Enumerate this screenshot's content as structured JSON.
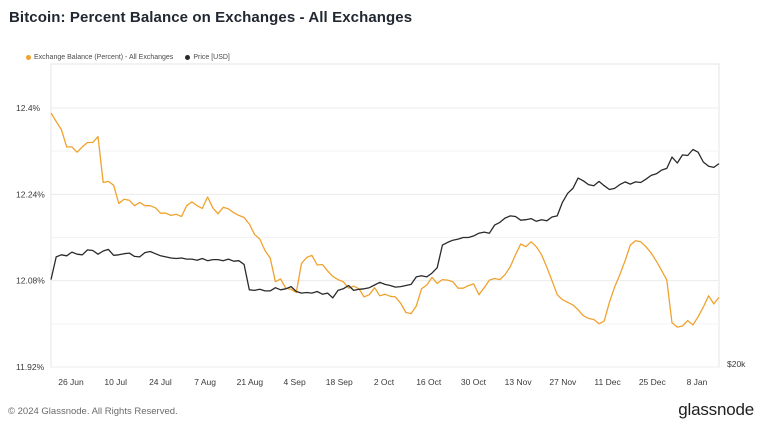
{
  "title": "Bitcoin: Percent Balance on Exchanges - All Exchanges",
  "footer": {
    "copyright": "© 2024 Glassnode. All Rights Reserved.",
    "brand": "glassnode"
  },
  "colors": {
    "balance": "#f0a22e",
    "price": "#2a2a2a",
    "grid": "#ececec"
  },
  "chart_data": {
    "type": "line",
    "title": "Bitcoin: Percent Balance on Exchanges - All Exchanges",
    "x_ticks": [
      "26 Jun",
      "10 Jul",
      "24 Jul",
      "7 Aug",
      "21 Aug",
      "4 Sep",
      "18 Sep",
      "2 Oct",
      "16 Oct",
      "30 Oct",
      "13 Nov",
      "27 Nov",
      "11 Dec",
      "25 Dec",
      "8 Jan"
    ],
    "y_left": {
      "ticks": [
        "12.4%",
        "12.24%",
        "12.08%",
        "11.92%"
      ],
      "tick_values": [
        12.4,
        12.24,
        12.08,
        11.92
      ],
      "range": [
        11.92,
        12.4
      ]
    },
    "y_right": {
      "ticks": [
        "$20k"
      ]
    },
    "grid": true,
    "legend_position": "top-left",
    "series": [
      {
        "name": "Exchange Balance (Percent) - All Exchanges",
        "axis": "left",
        "color": "#f0a22e",
        "points": [
          [
            0,
            12.391
          ],
          [
            1,
            12.375
          ],
          [
            2,
            12.36
          ],
          [
            3,
            12.328
          ],
          [
            4,
            12.328
          ],
          [
            5,
            12.318
          ],
          [
            6,
            12.328
          ],
          [
            7,
            12.336
          ],
          [
            8,
            12.336
          ],
          [
            9,
            12.347
          ],
          [
            10,
            12.262
          ],
          [
            11,
            12.264
          ],
          [
            12,
            12.257
          ],
          [
            13,
            12.223
          ],
          [
            14,
            12.231
          ],
          [
            15,
            12.229
          ],
          [
            16,
            12.219
          ],
          [
            17,
            12.225
          ],
          [
            18,
            12.219
          ],
          [
            19,
            12.219
          ],
          [
            20,
            12.215
          ],
          [
            21,
            12.205
          ],
          [
            22,
            12.205
          ],
          [
            23,
            12.201
          ],
          [
            24,
            12.203
          ],
          [
            25,
            12.199
          ],
          [
            26,
            12.219
          ],
          [
            27,
            12.226
          ],
          [
            28,
            12.219
          ],
          [
            29,
            12.214
          ],
          [
            30,
            12.235
          ],
          [
            31,
            12.215
          ],
          [
            32,
            12.204
          ],
          [
            33,
            12.216
          ],
          [
            34,
            12.213
          ],
          [
            35,
            12.206
          ],
          [
            36,
            12.201
          ],
          [
            37,
            12.197
          ],
          [
            38,
            12.185
          ],
          [
            39,
            12.166
          ],
          [
            40,
            12.157
          ],
          [
            41,
            12.136
          ],
          [
            42,
            12.122
          ],
          [
            43,
            12.078
          ],
          [
            44,
            12.083
          ],
          [
            45,
            12.066
          ],
          [
            46,
            12.064
          ],
          [
            47,
            12.058
          ],
          [
            48,
            12.112
          ],
          [
            49,
            12.123
          ],
          [
            50,
            12.127
          ],
          [
            51,
            12.109
          ],
          [
            52,
            12.11
          ],
          [
            53,
            12.098
          ],
          [
            54,
            12.088
          ],
          [
            55,
            12.082
          ],
          [
            56,
            12.078
          ],
          [
            57,
            12.066
          ],
          [
            58,
            12.07
          ],
          [
            59,
            12.065
          ],
          [
            60,
            12.05
          ],
          [
            61,
            12.054
          ],
          [
            62,
            12.067
          ],
          [
            63,
            12.052
          ],
          [
            64,
            12.055
          ],
          [
            65,
            12.051
          ],
          [
            66,
            12.05
          ],
          [
            67,
            12.038
          ],
          [
            68,
            12.021
          ],
          [
            69,
            12.019
          ],
          [
            70,
            12.033
          ],
          [
            71,
            12.065
          ],
          [
            72,
            12.072
          ],
          [
            73,
            12.086
          ],
          [
            74,
            12.075
          ],
          [
            75,
            12.082
          ],
          [
            76,
            12.081
          ],
          [
            77,
            12.078
          ],
          [
            78,
            12.066
          ],
          [
            79,
            12.066
          ],
          [
            80,
            12.071
          ],
          [
            81,
            12.074
          ],
          [
            82,
            12.054
          ],
          [
            83,
            12.067
          ],
          [
            84,
            12.081
          ],
          [
            85,
            12.084
          ],
          [
            86,
            12.082
          ],
          [
            87,
            12.091
          ],
          [
            88,
            12.106
          ],
          [
            89,
            12.128
          ],
          [
            90,
            12.148
          ],
          [
            91,
            12.143
          ],
          [
            92,
            12.152
          ],
          [
            93,
            12.143
          ],
          [
            94,
            12.128
          ],
          [
            95,
            12.105
          ],
          [
            96,
            12.08
          ],
          [
            97,
            12.054
          ],
          [
            98,
            12.045
          ],
          [
            99,
            12.04
          ],
          [
            100,
            12.035
          ],
          [
            101,
            12.026
          ],
          [
            102,
            12.015
          ],
          [
            103,
            12.01
          ],
          [
            104,
            12.008
          ],
          [
            105,
            12.0
          ],
          [
            106,
            12.005
          ],
          [
            107,
            12.04
          ],
          [
            108,
            12.068
          ],
          [
            109,
            12.091
          ],
          [
            110,
            12.117
          ],
          [
            111,
            12.146
          ],
          [
            112,
            12.154
          ],
          [
            113,
            12.152
          ],
          [
            114,
            12.143
          ],
          [
            115,
            12.131
          ],
          [
            116,
            12.116
          ],
          [
            117,
            12.099
          ],
          [
            118,
            12.081
          ],
          [
            119,
            12.002
          ],
          [
            120,
            11.994
          ],
          [
            121,
            11.996
          ],
          [
            122,
            12.006
          ],
          [
            123,
            11.998
          ],
          [
            124,
            12.013
          ],
          [
            125,
            12.031
          ],
          [
            126,
            12.052
          ],
          [
            127,
            12.037
          ],
          [
            128,
            12.049
          ]
        ]
      },
      {
        "name": "Price [USD]",
        "axis": "right",
        "color": "#2a2a2a",
        "points": [
          [
            0,
            12.082
          ],
          [
            1,
            12.124
          ],
          [
            2,
            12.128
          ],
          [
            3,
            12.126
          ],
          [
            4,
            12.133
          ],
          [
            5,
            12.129
          ],
          [
            6,
            12.128
          ],
          [
            7,
            12.137
          ],
          [
            8,
            12.136
          ],
          [
            9,
            12.129
          ],
          [
            10,
            12.135
          ],
          [
            11,
            12.138
          ],
          [
            12,
            12.127
          ],
          [
            13,
            12.128
          ],
          [
            14,
            12.13
          ],
          [
            15,
            12.131
          ],
          [
            16,
            12.125
          ],
          [
            17,
            12.124
          ],
          [
            18,
            12.132
          ],
          [
            19,
            12.134
          ],
          [
            20,
            12.13
          ],
          [
            21,
            12.126
          ],
          [
            22,
            12.124
          ],
          [
            23,
            12.122
          ],
          [
            24,
            12.121
          ],
          [
            25,
            12.122
          ],
          [
            26,
            12.12
          ],
          [
            27,
            12.12
          ],
          [
            28,
            12.118
          ],
          [
            29,
            12.121
          ],
          [
            30,
            12.117
          ],
          [
            31,
            12.119
          ],
          [
            32,
            12.119
          ],
          [
            33,
            12.117
          ],
          [
            34,
            12.12
          ],
          [
            35,
            12.116
          ],
          [
            36,
            12.117
          ],
          [
            37,
            12.11
          ],
          [
            38,
            12.063
          ],
          [
            39,
            12.062
          ],
          [
            40,
            12.064
          ],
          [
            41,
            12.061
          ],
          [
            42,
            12.061
          ],
          [
            43,
            12.067
          ],
          [
            44,
            12.063
          ],
          [
            45,
            12.065
          ],
          [
            46,
            12.069
          ],
          [
            47,
            12.06
          ],
          [
            48,
            12.057
          ],
          [
            49,
            12.058
          ],
          [
            50,
            12.057
          ],
          [
            51,
            12.06
          ],
          [
            52,
            12.055
          ],
          [
            53,
            12.057
          ],
          [
            54,
            12.048
          ],
          [
            55,
            12.062
          ],
          [
            56,
            12.065
          ],
          [
            57,
            12.071
          ],
          [
            58,
            12.062
          ],
          [
            59,
            12.064
          ],
          [
            60,
            12.065
          ],
          [
            61,
            12.067
          ],
          [
            62,
            12.072
          ],
          [
            63,
            12.077
          ],
          [
            64,
            12.073
          ],
          [
            65,
            12.071
          ],
          [
            66,
            12.068
          ],
          [
            67,
            12.069
          ],
          [
            68,
            12.071
          ],
          [
            69,
            12.073
          ],
          [
            70,
            12.087
          ],
          [
            71,
            12.089
          ],
          [
            72,
            12.087
          ],
          [
            73,
            12.094
          ],
          [
            74,
            12.104
          ],
          [
            75,
            12.146
          ],
          [
            76,
            12.151
          ],
          [
            77,
            12.155
          ],
          [
            78,
            12.157
          ],
          [
            79,
            12.16
          ],
          [
            80,
            12.16
          ],
          [
            81,
            12.163
          ],
          [
            82,
            12.168
          ],
          [
            83,
            12.17
          ],
          [
            84,
            12.168
          ],
          [
            85,
            12.183
          ],
          [
            86,
            12.188
          ],
          [
            87,
            12.196
          ],
          [
            88,
            12.2
          ],
          [
            89,
            12.199
          ],
          [
            90,
            12.192
          ],
          [
            91,
            12.193
          ],
          [
            92,
            12.195
          ],
          [
            93,
            12.19
          ],
          [
            94,
            12.193
          ],
          [
            95,
            12.191
          ],
          [
            96,
            12.198
          ],
          [
            97,
            12.2
          ],
          [
            98,
            12.225
          ],
          [
            99,
            12.242
          ],
          [
            100,
            12.251
          ],
          [
            101,
            12.27
          ],
          [
            102,
            12.265
          ],
          [
            103,
            12.258
          ],
          [
            104,
            12.256
          ],
          [
            105,
            12.264
          ],
          [
            106,
            12.256
          ],
          [
            107,
            12.249
          ],
          [
            108,
            12.251
          ],
          [
            109,
            12.258
          ],
          [
            110,
            12.263
          ],
          [
            111,
            12.259
          ],
          [
            112,
            12.263
          ],
          [
            113,
            12.262
          ],
          [
            114,
            12.268
          ],
          [
            115,
            12.275
          ],
          [
            116,
            12.278
          ],
          [
            117,
            12.285
          ],
          [
            118,
            12.288
          ],
          [
            119,
            12.309
          ],
          [
            120,
            12.298
          ],
          [
            121,
            12.313
          ],
          [
            122,
            12.312
          ],
          [
            123,
            12.323
          ],
          [
            124,
            12.318
          ],
          [
            125,
            12.3
          ],
          [
            126,
            12.292
          ],
          [
            127,
            12.29
          ],
          [
            128,
            12.297
          ]
        ]
      }
    ]
  }
}
